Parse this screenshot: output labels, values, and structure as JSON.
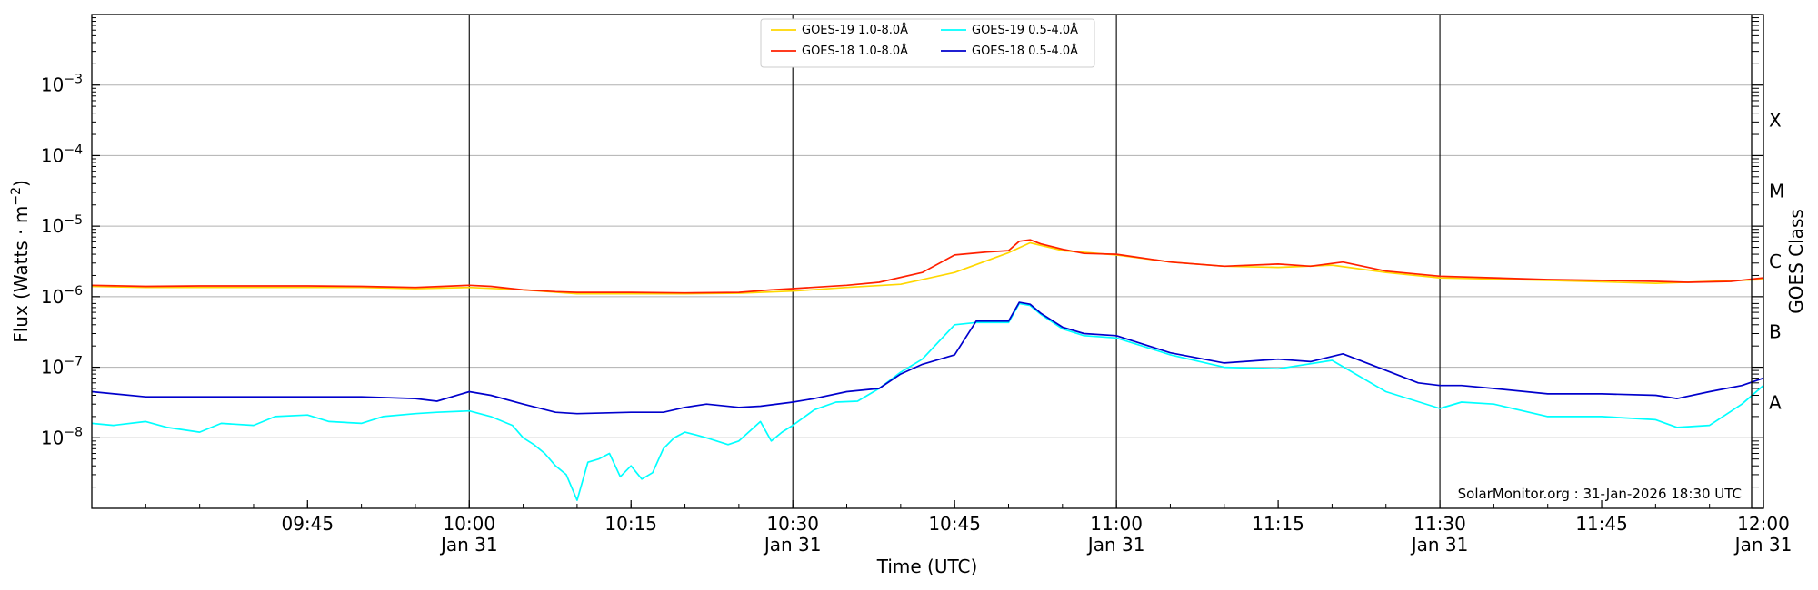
{
  "chart_data": {
    "type": "line",
    "xlabel": "Time (UTC)",
    "ylabel": "Flux (Watts · m",
    "ylabel_sup": "−2",
    "ylabel_close": ")",
    "right_label": "GOES Class",
    "credit": "SolarMonitor.org : 31-Jan-2026 18:30 UTC",
    "xlim": [
      "09:25",
      "12:00"
    ],
    "ylim_exponents": [
      -9,
      -2
    ],
    "y_scale": "log",
    "grid": "horizontal at decades, vertical at half-hours",
    "legend_position": "top-center",
    "x_ticks": [
      {
        "time": "09:45",
        "label": "09:45",
        "date": ""
      },
      {
        "time": "10:00",
        "label": "10:00",
        "date": "Jan 31"
      },
      {
        "time": "10:15",
        "label": "10:15",
        "date": ""
      },
      {
        "time": "10:30",
        "label": "10:30",
        "date": "Jan 31"
      },
      {
        "time": "10:45",
        "label": "10:45",
        "date": ""
      },
      {
        "time": "11:00",
        "label": "11:00",
        "date": "Jan 31"
      },
      {
        "time": "11:15",
        "label": "11:15",
        "date": ""
      },
      {
        "time": "11:30",
        "label": "11:30",
        "date": "Jan 31"
      },
      {
        "time": "11:45",
        "label": "11:45",
        "date": ""
      },
      {
        "time": "12:00",
        "label": "12:00",
        "date": "Jan 31"
      }
    ],
    "y_ticks": [
      {
        "value": 1e-08,
        "base": "10",
        "exp": "−8"
      },
      {
        "value": 1e-07,
        "base": "10",
        "exp": "−7"
      },
      {
        "value": 1e-06,
        "base": "10",
        "exp": "−6"
      },
      {
        "value": 1e-05,
        "base": "10",
        "exp": "−5"
      },
      {
        "value": 0.0001,
        "base": "10",
        "exp": "−4"
      },
      {
        "value": 0.001,
        "base": "10",
        "exp": "−3"
      }
    ],
    "goes_classes": [
      {
        "label": "A",
        "value": 3.16e-08
      },
      {
        "label": "B",
        "value": 3.16e-07
      },
      {
        "label": "C",
        "value": 3.16e-06
      },
      {
        "label": "M",
        "value": 3.16e-05
      },
      {
        "label": "X",
        "value": 0.000316
      }
    ],
    "series": [
      {
        "name": "GOES-19 1.0-8.0Å",
        "color": "#ffd700",
        "x": [
          "09:25",
          "09:30",
          "09:35",
          "09:40",
          "09:45",
          "09:50",
          "09:55",
          "10:00",
          "10:05",
          "10:10",
          "10:15",
          "10:20",
          "10:25",
          "10:30",
          "10:35",
          "10:40",
          "10:45",
          "10:50",
          "10:52",
          "10:55",
          "11:00",
          "11:05",
          "11:10",
          "11:15",
          "11:20",
          "11:25",
          "11:30",
          "11:40",
          "11:50",
          "12:00"
        ],
        "values": [
          1.4e-06,
          1.35e-06,
          1.35e-06,
          1.35e-06,
          1.35e-06,
          1.35e-06,
          1.3e-06,
          1.35e-06,
          1.25e-06,
          1.1e-06,
          1.1e-06,
          1.1e-06,
          1.12e-06,
          1.2e-06,
          1.35e-06,
          1.5e-06,
          2.2e-06,
          4.2e-06,
          5.8e-06,
          4.5e-06,
          3.9e-06,
          3.1e-06,
          2.7e-06,
          2.6e-06,
          2.8e-06,
          2.2e-06,
          1.85e-06,
          1.7e-06,
          1.55e-06,
          1.75e-06
        ]
      },
      {
        "name": "GOES-18 1.0-8.0Å",
        "color": "#ff2000",
        "x": [
          "09:25",
          "09:30",
          "09:35",
          "09:40",
          "09:45",
          "09:50",
          "09:55",
          "10:00",
          "10:02",
          "10:05",
          "10:08",
          "10:10",
          "10:15",
          "10:20",
          "10:25",
          "10:28",
          "10:30",
          "10:35",
          "10:38",
          "10:42",
          "10:45",
          "10:48",
          "10:50",
          "10:51",
          "10:52",
          "10:53",
          "10:55",
          "10:57",
          "11:00",
          "11:05",
          "11:10",
          "11:15",
          "11:18",
          "11:21",
          "11:25",
          "11:30",
          "11:35",
          "11:40",
          "11:45",
          "11:50",
          "11:53",
          "11:57",
          "12:00"
        ],
        "values": [
          1.45e-06,
          1.4e-06,
          1.42e-06,
          1.42e-06,
          1.42e-06,
          1.4e-06,
          1.35e-06,
          1.45e-06,
          1.4e-06,
          1.25e-06,
          1.18e-06,
          1.15e-06,
          1.15e-06,
          1.13e-06,
          1.15e-06,
          1.25e-06,
          1.3e-06,
          1.45e-06,
          1.6e-06,
          2.2e-06,
          3.9e-06,
          4.3e-06,
          4.5e-06,
          6.1e-06,
          6.4e-06,
          5.6e-06,
          4.7e-06,
          4.1e-06,
          4e-06,
          3.1e-06,
          2.7e-06,
          2.9e-06,
          2.7e-06,
          3.1e-06,
          2.3e-06,
          1.95e-06,
          1.85e-06,
          1.75e-06,
          1.7e-06,
          1.65e-06,
          1.6e-06,
          1.65e-06,
          1.85e-06
        ]
      },
      {
        "name": "GOES-19 0.5-4.0Å",
        "color": "#00ffff",
        "x": [
          "09:25",
          "09:27",
          "09:30",
          "09:32",
          "09:35",
          "09:37",
          "09:40",
          "09:42",
          "09:45",
          "09:47",
          "09:50",
          "09:52",
          "09:55",
          "09:57",
          "10:00",
          "10:02",
          "10:04",
          "10:05",
          "10:06",
          "10:07",
          "10:08",
          "10:09",
          "10:10",
          "10:11",
          "10:12",
          "10:13",
          "10:14",
          "10:15",
          "10:16",
          "10:17",
          "10:18",
          "10:19",
          "10:20",
          "10:21",
          "10:22",
          "10:24",
          "10:25",
          "10:27",
          "10:28",
          "10:29",
          "10:30",
          "10:32",
          "10:34",
          "10:36",
          "10:38",
          "10:40",
          "10:42",
          "10:45",
          "10:47",
          "10:50",
          "10:51",
          "10:52",
          "10:53",
          "10:55",
          "10:57",
          "11:00",
          "11:05",
          "11:10",
          "11:15",
          "11:20",
          "11:25",
          "11:30",
          "11:32",
          "11:35",
          "11:40",
          "11:45",
          "11:50",
          "11:52",
          "11:55",
          "11:58",
          "12:00"
        ],
        "values": [
          1.6e-08,
          1.5e-08,
          1.7e-08,
          1.4e-08,
          1.2e-08,
          1.6e-08,
          1.5e-08,
          2e-08,
          2.1e-08,
          1.7e-08,
          1.6e-08,
          2e-08,
          2.2e-08,
          2.3e-08,
          2.4e-08,
          2e-08,
          1.5e-08,
          1e-08,
          8e-09,
          6e-09,
          4e-09,
          3e-09,
          1.3e-09,
          4.5e-09,
          5e-09,
          6e-09,
          2.8e-09,
          4e-09,
          2.6e-09,
          3.2e-09,
          7e-09,
          1e-08,
          1.2e-08,
          1.1e-08,
          1e-08,
          8e-09,
          9e-09,
          1.7e-08,
          9e-09,
          1.2e-08,
          1.5e-08,
          2.5e-08,
          3.2e-08,
          3.3e-08,
          5e-08,
          8.5e-08,
          1.3e-07,
          4e-07,
          4.3e-07,
          4.3e-07,
          8e-07,
          7.5e-07,
          5.6e-07,
          3.5e-07,
          2.8e-07,
          2.6e-07,
          1.5e-07,
          1e-07,
          9.5e-08,
          1.25e-07,
          4.5e-08,
          2.6e-08,
          3.2e-08,
          3e-08,
          2e-08,
          2e-08,
          1.8e-08,
          1.4e-08,
          1.5e-08,
          3e-08,
          5.5e-08
        ]
      },
      {
        "name": "GOES-18 0.5-4.0Å",
        "color": "#0000cc",
        "x": [
          "09:25",
          "09:30",
          "09:35",
          "09:40",
          "09:45",
          "09:50",
          "09:55",
          "09:57",
          "10:00",
          "10:02",
          "10:05",
          "10:08",
          "10:10",
          "10:15",
          "10:18",
          "10:20",
          "10:22",
          "10:25",
          "10:27",
          "10:30",
          "10:32",
          "10:35",
          "10:38",
          "10:40",
          "10:42",
          "10:45",
          "10:47",
          "10:50",
          "10:51",
          "10:52",
          "10:53",
          "10:55",
          "10:57",
          "11:00",
          "11:05",
          "11:10",
          "11:15",
          "11:18",
          "11:21",
          "11:25",
          "11:28",
          "11:30",
          "11:32",
          "11:35",
          "11:40",
          "11:45",
          "11:50",
          "11:52",
          "11:55",
          "11:58",
          "12:00"
        ],
        "values": [
          4.5e-08,
          3.8e-08,
          3.8e-08,
          3.8e-08,
          3.8e-08,
          3.8e-08,
          3.6e-08,
          3.3e-08,
          4.5e-08,
          4e-08,
          3e-08,
          2.3e-08,
          2.2e-08,
          2.3e-08,
          2.3e-08,
          2.7e-08,
          3e-08,
          2.7e-08,
          2.8e-08,
          3.2e-08,
          3.6e-08,
          4.5e-08,
          5e-08,
          8e-08,
          1.1e-07,
          1.5e-07,
          4.5e-07,
          4.5e-07,
          8.3e-07,
          7.8e-07,
          5.8e-07,
          3.7e-07,
          3e-07,
          2.8e-07,
          1.6e-07,
          1.15e-07,
          1.3e-07,
          1.2e-07,
          1.55e-07,
          9e-08,
          6e-08,
          5.5e-08,
          5.5e-08,
          5e-08,
          4.2e-08,
          4.2e-08,
          4e-08,
          3.6e-08,
          4.5e-08,
          5.5e-08,
          7e-08
        ]
      }
    ]
  }
}
